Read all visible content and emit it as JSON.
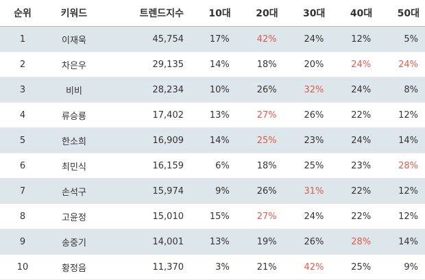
{
  "colors": {
    "highlight": "#e05a4e",
    "row_shade": "#dde6ea",
    "text": "#333333"
  },
  "headers": [
    "순위",
    "키워드",
    "트렌드지수",
    "10대",
    "20대",
    "30대",
    "40대",
    "50대"
  ],
  "rows": [
    {
      "rank": "1",
      "keyword": "이재욱",
      "index": "45,754",
      "ages": [
        "17%",
        "42%",
        "24%",
        "12%",
        "5%"
      ],
      "highlight": [
        1
      ]
    },
    {
      "rank": "2",
      "keyword": "차은우",
      "index": "29,135",
      "ages": [
        "14%",
        "18%",
        "20%",
        "24%",
        "24%"
      ],
      "highlight": [
        3,
        4
      ]
    },
    {
      "rank": "3",
      "keyword": "비비",
      "index": "28,234",
      "ages": [
        "10%",
        "26%",
        "32%",
        "24%",
        "8%"
      ],
      "highlight": [
        2
      ]
    },
    {
      "rank": "4",
      "keyword": "류승룡",
      "index": "17,402",
      "ages": [
        "13%",
        "27%",
        "26%",
        "22%",
        "12%"
      ],
      "highlight": [
        1
      ]
    },
    {
      "rank": "5",
      "keyword": "한소희",
      "index": "16,909",
      "ages": [
        "14%",
        "25%",
        "23%",
        "24%",
        "14%"
      ],
      "highlight": [
        1
      ]
    },
    {
      "rank": "6",
      "keyword": "최민식",
      "index": "16,159",
      "ages": [
        "6%",
        "18%",
        "25%",
        "23%",
        "28%"
      ],
      "highlight": [
        4
      ]
    },
    {
      "rank": "7",
      "keyword": "손석구",
      "index": "15,974",
      "ages": [
        "9%",
        "26%",
        "31%",
        "22%",
        "12%"
      ],
      "highlight": [
        2
      ]
    },
    {
      "rank": "8",
      "keyword": "고윤정",
      "index": "15,010",
      "ages": [
        "15%",
        "27%",
        "24%",
        "22%",
        "12%"
      ],
      "highlight": [
        1
      ]
    },
    {
      "rank": "9",
      "keyword": "송중기",
      "index": "14,001",
      "ages": [
        "13%",
        "19%",
        "26%",
        "28%",
        "14%"
      ],
      "highlight": [
        3
      ]
    },
    {
      "rank": "10",
      "keyword": "황정음",
      "index": "11,370",
      "ages": [
        "3%",
        "21%",
        "42%",
        "25%",
        "9%"
      ],
      "highlight": [
        2
      ]
    }
  ]
}
